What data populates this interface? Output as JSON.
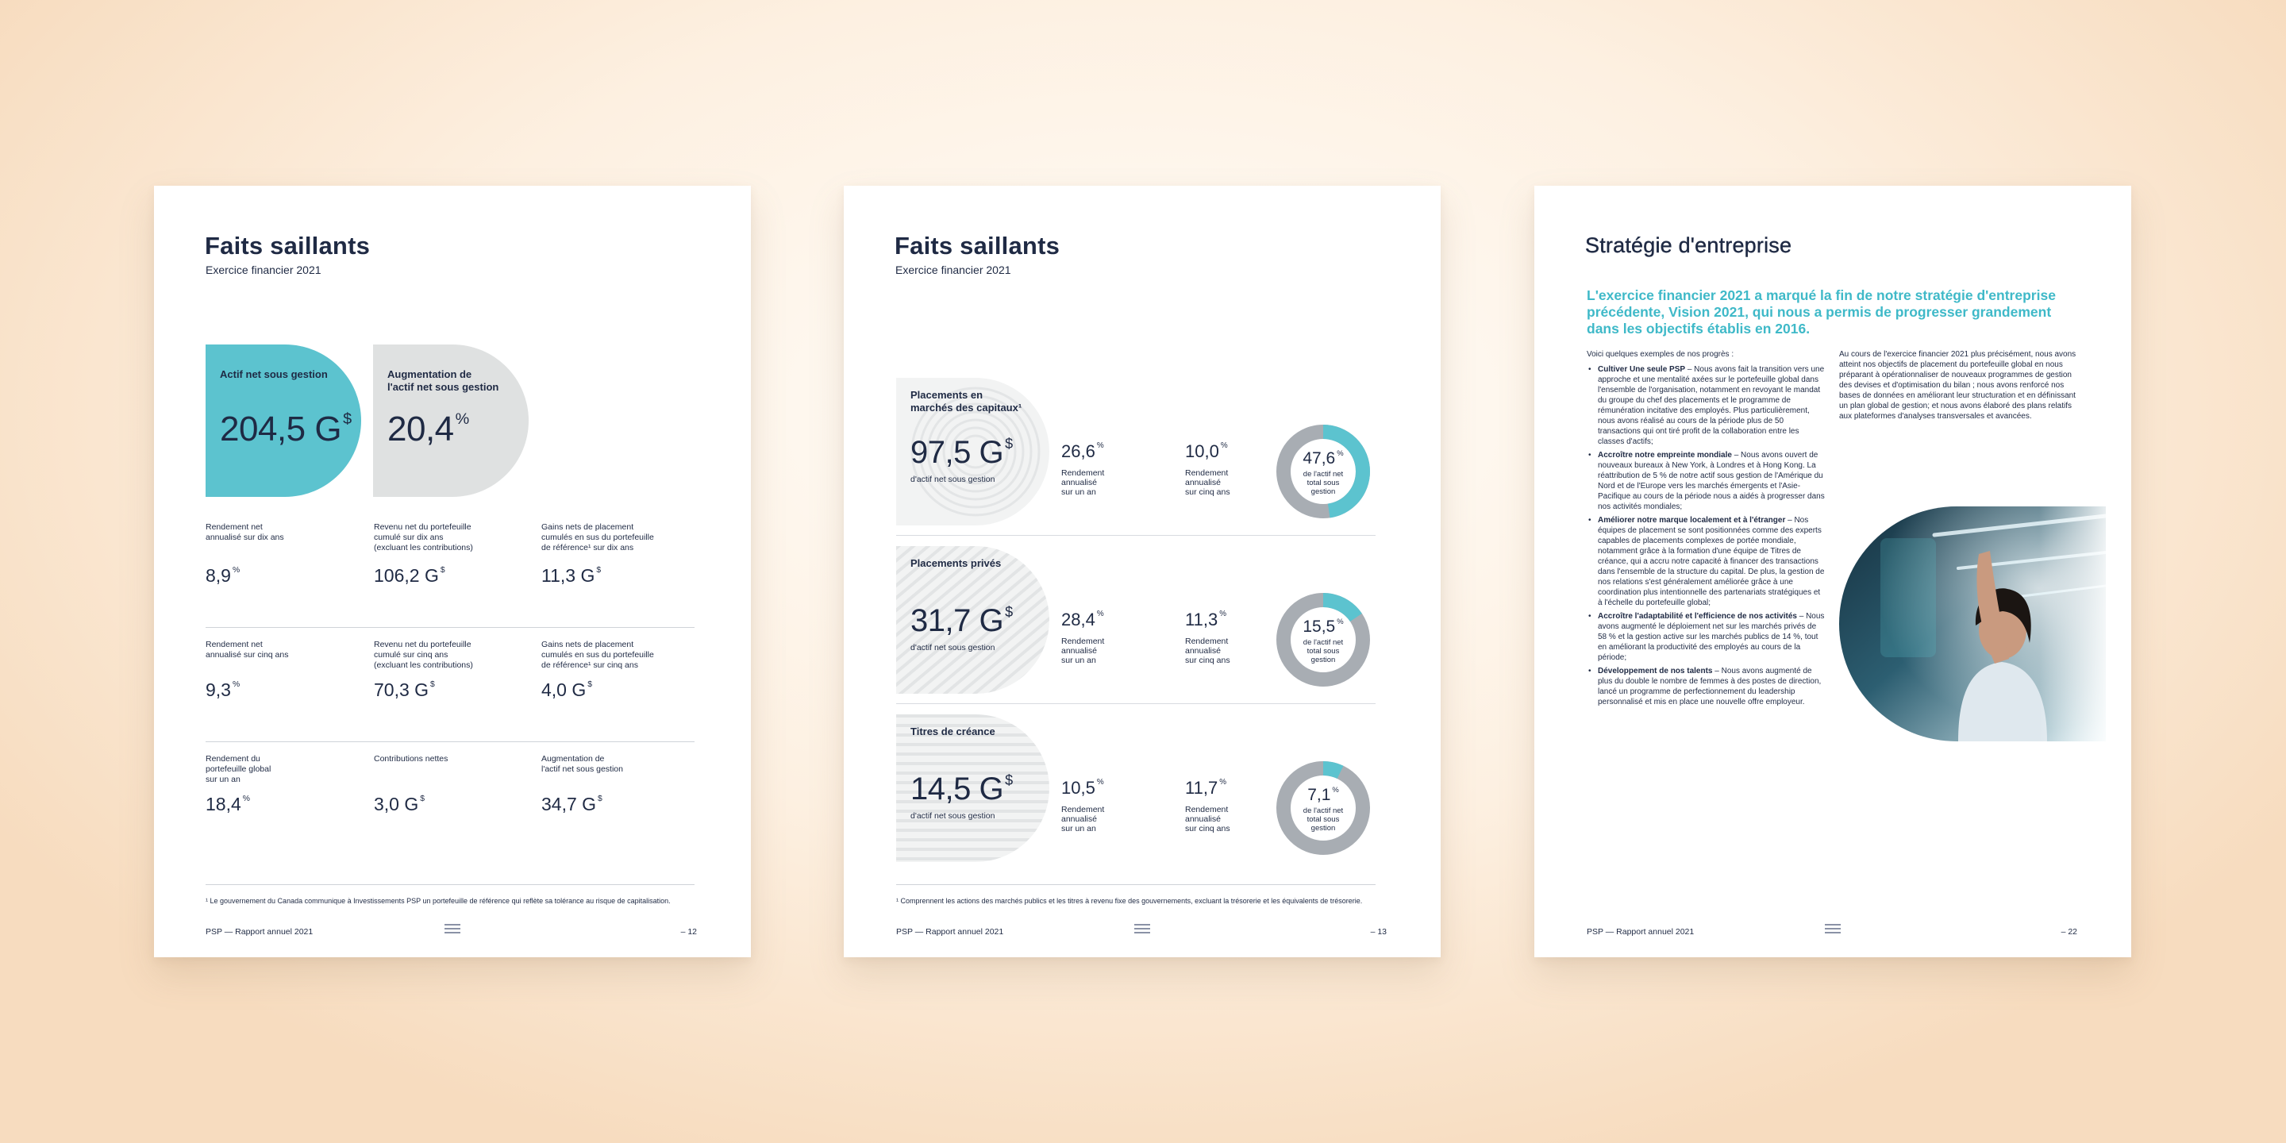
{
  "page1": {
    "title": "Faits saillants",
    "subtitle": "Exercice financier 2021",
    "highlight_teal": {
      "label": "Actif net sous gestion",
      "value": "204,5 G",
      "unit": "$"
    },
    "highlight_grey": {
      "label": "Augmentation de\nl'actif net sous gestion",
      "value": "20,4",
      "unit": "%"
    },
    "metrics": [
      {
        "label": "Rendement net\nannualisé sur dix ans",
        "value": "8,9",
        "unit": "%"
      },
      {
        "label": "Revenu net du portefeuille\ncumulé sur dix ans\n(excluant les contributions)",
        "value": "106,2 G",
        "unit": "$"
      },
      {
        "label": "Gains nets de placement\ncumulés en sus du portefeuille\nde référence¹ sur dix ans",
        "value": "11,3 G",
        "unit": "$"
      },
      {
        "label": "Rendement net\nannualisé sur cinq ans",
        "value": "9,3",
        "unit": "%"
      },
      {
        "label": "Revenu net du portefeuille\ncumulé sur cinq ans\n(excluant les contributions)",
        "value": "70,3 G",
        "unit": "$"
      },
      {
        "label": "Gains nets de placement\ncumulés en sus du portefeuille\nde référence¹ sur cinq ans",
        "value": "4,0 G",
        "unit": "$"
      },
      {
        "label": "Rendement du\nportefeuille global\nsur un an",
        "value": "18,4",
        "unit": "%"
      },
      {
        "label": "Contributions nettes",
        "value": "3,0 G",
        "unit": "$"
      },
      {
        "label": "Augmentation de\nl'actif net sous gestion",
        "value": "34,7 G",
        "unit": "$"
      }
    ],
    "footnote": "¹  Le gouvernement du Canada communique à Investissements PSP un portefeuille de référence qui reflète sa tolérance au risque de capitalisation.",
    "footer_left": "PSP — Rapport annuel 2021",
    "page_number": "– 12"
  },
  "page2": {
    "title": "Faits saillants",
    "subtitle": "Exercice financier 2021",
    "sections": [
      {
        "title": "Placements en\nmarchés des capitaux¹",
        "value": "97,5 G",
        "unit": "$",
        "value_label": "d'actif net sous gestion",
        "one_year": "26,6",
        "one_year_label": "Rendement\nannualisé\nsur un an",
        "five_year": "10,0",
        "five_year_label": "Rendement\nannualisé\nsur cinq ans",
        "share": "47,6",
        "share_fraction": 0.476,
        "share_label": "de l'actif net\ntotal sous\ngestion"
      },
      {
        "title": "Placements privés",
        "value": "31,7 G",
        "unit": "$",
        "value_label": "d'actif net sous gestion",
        "one_year": "28,4",
        "one_year_label": "Rendement\nannualisé\nsur un an",
        "five_year": "11,3",
        "five_year_label": "Rendement\nannualisé\nsur cinq ans",
        "share": "15,5",
        "share_fraction": 0.155,
        "share_label": "de l'actif net\ntotal sous\ngestion"
      },
      {
        "title": "Titres de créance",
        "value": "14,5 G",
        "unit": "$",
        "value_label": "d'actif net sous gestion",
        "one_year": "10,5",
        "one_year_label": "Rendement\nannualisé\nsur un an",
        "five_year": "11,7",
        "five_year_label": "Rendement\nannualisé\nsur cinq ans",
        "share": "7,1",
        "share_fraction": 0.071,
        "share_label": "de l'actif net\ntotal sous\ngestion"
      }
    ],
    "pct_unit": "%",
    "footnote": "¹  Comprennent les actions des marchés publics et les titres à revenu fixe des gouvernements, excluant la trésorerie et les équivalents de trésorerie.",
    "footer_left": "PSP — Rapport annuel 2021",
    "page_number": "– 13"
  },
  "page3": {
    "title": "Stratégie d'entreprise",
    "lead": "L'exercice financier 2021 a marqué la fin de notre stratégie d'entreprise précédente, Vision 2021, qui nous a permis de progresser grandement dans les objectifs établis en 2016.",
    "intro": "Voici quelques exemples de nos progrès :",
    "bullets": [
      {
        "heading": "Cultiver Une seule PSP",
        "text": " – Nous avons fait la transition vers une approche et une mentalité axées sur le portefeuille global dans l'ensemble de l'organisation, notamment en revoyant le mandat du groupe du chef des placements et le programme de rémunération incitative des employés. Plus particulièrement, nous avons réalisé au cours de la période plus de 50 transactions qui ont tiré profit de la collaboration entre les classes d'actifs;"
      },
      {
        "heading": "Accroître notre empreinte mondiale",
        "text": " – Nous avons ouvert de nouveaux bureaux à New York, à Londres et à Hong Kong. La réattribution de 5 % de notre actif sous gestion de l'Amérique du Nord et de l'Europe vers les marchés émergents et l'Asie-Pacifique au cours de la période nous a aidés à progresser dans nos activités mondiales;"
      },
      {
        "heading": "Améliorer notre marque localement et à l'étranger",
        "text": " – Nos équipes de placement se sont positionnées comme des experts capables de placements complexes de portée mondiale, notamment grâce à la formation d'une équipe de Titres de créance, qui a accru notre capacité à financer des transactions dans l'ensemble de la structure du capital. De plus, la gestion de nos relations s'est généralement améliorée grâce à une coordination plus intentionnelle des partenariats stratégiques et à l'échelle du portefeuille global;"
      },
      {
        "heading": "Accroître l'adaptabilité et l'efficience de nos activités",
        "text": " – Nous avons augmenté le déploiement net sur les marchés privés de 58 % et la gestion active sur les marchés publics de 14 %, tout en améliorant la productivité des employés au cours de la période;"
      },
      {
        "heading": "Développement de nos talents",
        "text": " – Nous avons augmenté de plus du double le nombre de femmes à des postes de direction, lancé un programme de perfectionnement du leadership personnalisé et mis en place une nouvelle offre employeur."
      }
    ],
    "right_paragraph": "Au cours de l'exercice financier 2021 plus précisément, nous avons atteint nos objectifs de placement du portefeuille global en nous préparant à opérationnaliser de nouveaux programmes de gestion des devises et d'optimisation du bilan ; nous avons renforcé nos bases de données en améliorant leur structuration et en définissant un plan global de gestion; et nous avons élaboré des plans relatifs aux plateformes d'analyses transversales et avancées.",
    "footer_left": "PSP — Rapport annuel 2021",
    "page_number": "– 22"
  },
  "colors": {
    "teal": "#5cc3cf",
    "navy": "#1f2a44",
    "grey_shape": "#dfe1e1",
    "donut_track": "#a8adb3",
    "lead_teal": "#3fb9c8"
  }
}
